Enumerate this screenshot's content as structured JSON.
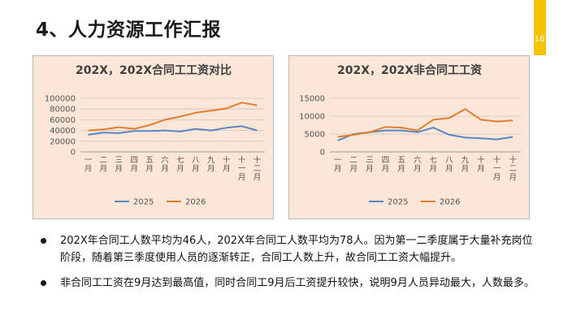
{
  "page": {
    "title": "4、人力资源工作汇报",
    "page_number": "16",
    "accent_color": "#f5c400"
  },
  "chart_data": [
    {
      "type": "line",
      "title": "202X，202X合同工工资对比",
      "categories": [
        "一月",
        "二月",
        "三月",
        "四月",
        "五月",
        "六月",
        "七月",
        "八月",
        "九月",
        "十月",
        "十一月",
        "十二月"
      ],
      "series": [
        {
          "name": "2025",
          "color": "#5b86c5",
          "values": [
            32000,
            36000,
            35000,
            39000,
            39000,
            40000,
            38000,
            43000,
            40000,
            45000,
            48000,
            40000
          ]
        },
        {
          "name": "2026",
          "color": "#e07f2e",
          "values": [
            40000,
            42000,
            46000,
            43000,
            50000,
            60000,
            66000,
            73000,
            77000,
            81000,
            92000,
            87000
          ]
        }
      ],
      "yticks": [
        0,
        20000,
        40000,
        60000,
        80000,
        100000
      ],
      "ylim": [
        0,
        100000
      ],
      "grid": true,
      "legend": "bottom"
    },
    {
      "type": "line",
      "title": "202X，202X非合同工工资",
      "categories": [
        "一月",
        "二月",
        "三月",
        "四月",
        "五月",
        "六月",
        "七月",
        "八月",
        "九月",
        "十月",
        "十一月",
        "十二月"
      ],
      "series": [
        {
          "name": "2025",
          "color": "#5b86c5",
          "values": [
            3200,
            5000,
            5500,
            6000,
            6000,
            5500,
            6800,
            4800,
            4000,
            3800,
            3500,
            4200
          ]
        },
        {
          "name": "2026",
          "color": "#e07f2e",
          "values": [
            4200,
            4800,
            5500,
            7000,
            6800,
            6000,
            9000,
            9500,
            12000,
            9000,
            8500,
            8800
          ]
        }
      ],
      "yticks": [
        0,
        5000,
        10000,
        15000
      ],
      "ylim": [
        0,
        15000
      ],
      "grid": true,
      "legend": "bottom"
    }
  ],
  "bullets": [
    "202X年合同工人数平均为46人，202X年合同工人数平均为78人。因为第一二季度属于大量补充岗位阶段，随着第三季度使用人员的逐渐转正，合同工人数上升，故合同工工资大幅提升。",
    "非合同工工资在9月达到最高值，同时合同工9月后工资提升较快，说明9月人员异动最大，人数最多。"
  ]
}
